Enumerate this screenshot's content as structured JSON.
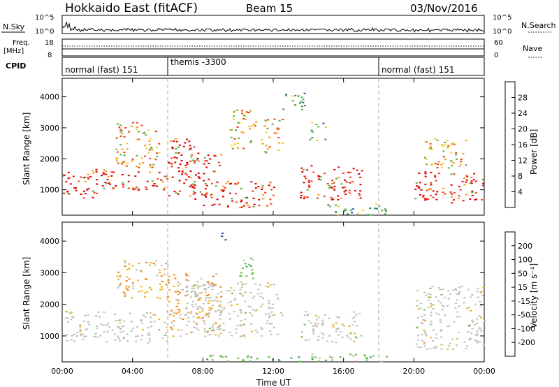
{
  "header": {
    "station": "Hokkaido East (fitACF)",
    "beam": "Beam 15",
    "date": "03/Nov/2016"
  },
  "top_panels": {
    "nsky_label": "N.Sky",
    "nsky_ticks": [
      "10^5",
      "10^0"
    ],
    "nsearch_label": "N.Search",
    "freq_label_1": "Freq.",
    "freq_label_2": "[MHz]",
    "freq_ticks": [
      "18",
      "8"
    ],
    "nave_label": "Nave",
    "nave_ticks": [
      "60",
      "0"
    ],
    "cpid_label": "CPID",
    "cpid_segments": [
      {
        "label": "normal (fast) 151",
        "start_hour": 0
      },
      {
        "label": "themis -3300",
        "start_hour": 6
      },
      {
        "label": "normal (fast) 151",
        "start_hour": 18
      }
    ]
  },
  "axes": {
    "ylabel": "Slant Range [km]",
    "xlabel": "Time UT",
    "yticks": [
      "1000",
      "2000",
      "3000",
      "4000"
    ],
    "xticks": [
      "00:00",
      "04:00",
      "08:00",
      "12:00",
      "16:00",
      "20:00",
      "00:00"
    ]
  },
  "power_colorbar": {
    "label": "Power [dB]",
    "ticks": [
      "4",
      "8",
      "12",
      "16",
      "20",
      "24",
      "28"
    ],
    "colors": [
      "#1a1aff",
      "#2a55a8",
      "#2f8c50",
      "#5ab040",
      "#f0d020",
      "#f59a10",
      "#f04010",
      "#e00000"
    ]
  },
  "velocity_colorbar": {
    "label": "Velocity [m s⁻¹]",
    "ticks": [
      "200",
      "100",
      "50",
      "15",
      "-15",
      "-50",
      "-100",
      "-200"
    ],
    "colors": [
      "#1a3aaa",
      "#2a6a9a",
      "#3a9a5a",
      "#60c040",
      "#c0c0b8",
      "#f0b020",
      "#f08010",
      "#f04020",
      "#e00000"
    ]
  },
  "chart_data": {
    "type": "heatmap",
    "x_range_hours": [
      0,
      24
    ],
    "y_range_km": [
      180,
      4600
    ],
    "dashed_lines_hours": [
      6,
      18
    ],
    "power_regions": [
      {
        "t": [
          0.0,
          2.5
        ],
        "r": [
          700,
          1700
        ],
        "level": "strong"
      },
      {
        "t": [
          2.5,
          6.0
        ],
        "r": [
          1000,
          1600
        ],
        "level": "strong"
      },
      {
        "t": [
          3.0,
          5.5
        ],
        "r": [
          1700,
          3200
        ],
        "level": "medium"
      },
      {
        "t": [
          6.0,
          7.5
        ],
        "r": [
          800,
          2700
        ],
        "level": "strong"
      },
      {
        "t": [
          7.2,
          9.0
        ],
        "r": [
          500,
          2200
        ],
        "level": "strong"
      },
      {
        "t": [
          9.0,
          12.0
        ],
        "r": [
          400,
          1300
        ],
        "level": "strong"
      },
      {
        "t": [
          9.5,
          11.0
        ],
        "r": [
          2300,
          3600
        ],
        "level": "medium"
      },
      {
        "t": [
          11.3,
          12.5
        ],
        "r": [
          2200,
          3300
        ],
        "level": "medium"
      },
      {
        "t": [
          12.5,
          13.8
        ],
        "r": [
          3600,
          4300
        ],
        "level": "weak"
      },
      {
        "t": [
          14.0,
          15.0
        ],
        "r": [
          2600,
          3200
        ],
        "level": "weak"
      },
      {
        "t": [
          13.5,
          17.0
        ],
        "r": [
          700,
          1800
        ],
        "level": "strong"
      },
      {
        "t": [
          15.0,
          18.5
        ],
        "r": [
          200,
          600
        ],
        "level": "weak"
      },
      {
        "t": [
          20.0,
          24.0
        ],
        "r": [
          600,
          1600
        ],
        "level": "strong"
      },
      {
        "t": [
          20.5,
          23.0
        ],
        "r": [
          1700,
          2700
        ],
        "level": "medium"
      }
    ],
    "velocity_regions": [
      {
        "t": [
          0.0,
          6.0
        ],
        "r": [
          800,
          1800
        ],
        "class": "low"
      },
      {
        "t": [
          3.0,
          6.0
        ],
        "r": [
          2200,
          3400
        ],
        "class": "neg"
      },
      {
        "t": [
          6.0,
          9.0
        ],
        "r": [
          1000,
          3000
        ],
        "class": "mix"
      },
      {
        "t": [
          7.0,
          12.5
        ],
        "r": [
          1000,
          2700
        ],
        "class": "low"
      },
      {
        "t": [
          10.0,
          11.0
        ],
        "r": [
          2700,
          3500
        ],
        "class": "pos"
      },
      {
        "t": [
          13.5,
          17.0
        ],
        "r": [
          800,
          1800
        ],
        "class": "low"
      },
      {
        "t": [
          8.0,
          18.5
        ],
        "r": [
          200,
          450
        ],
        "class": "pos"
      },
      {
        "t": [
          9.0,
          9.4
        ],
        "r": [
          4000,
          4400
        ],
        "class": "fast"
      },
      {
        "t": [
          20.0,
          24.0
        ],
        "r": [
          600,
          2600
        ],
        "class": "low"
      }
    ]
  }
}
